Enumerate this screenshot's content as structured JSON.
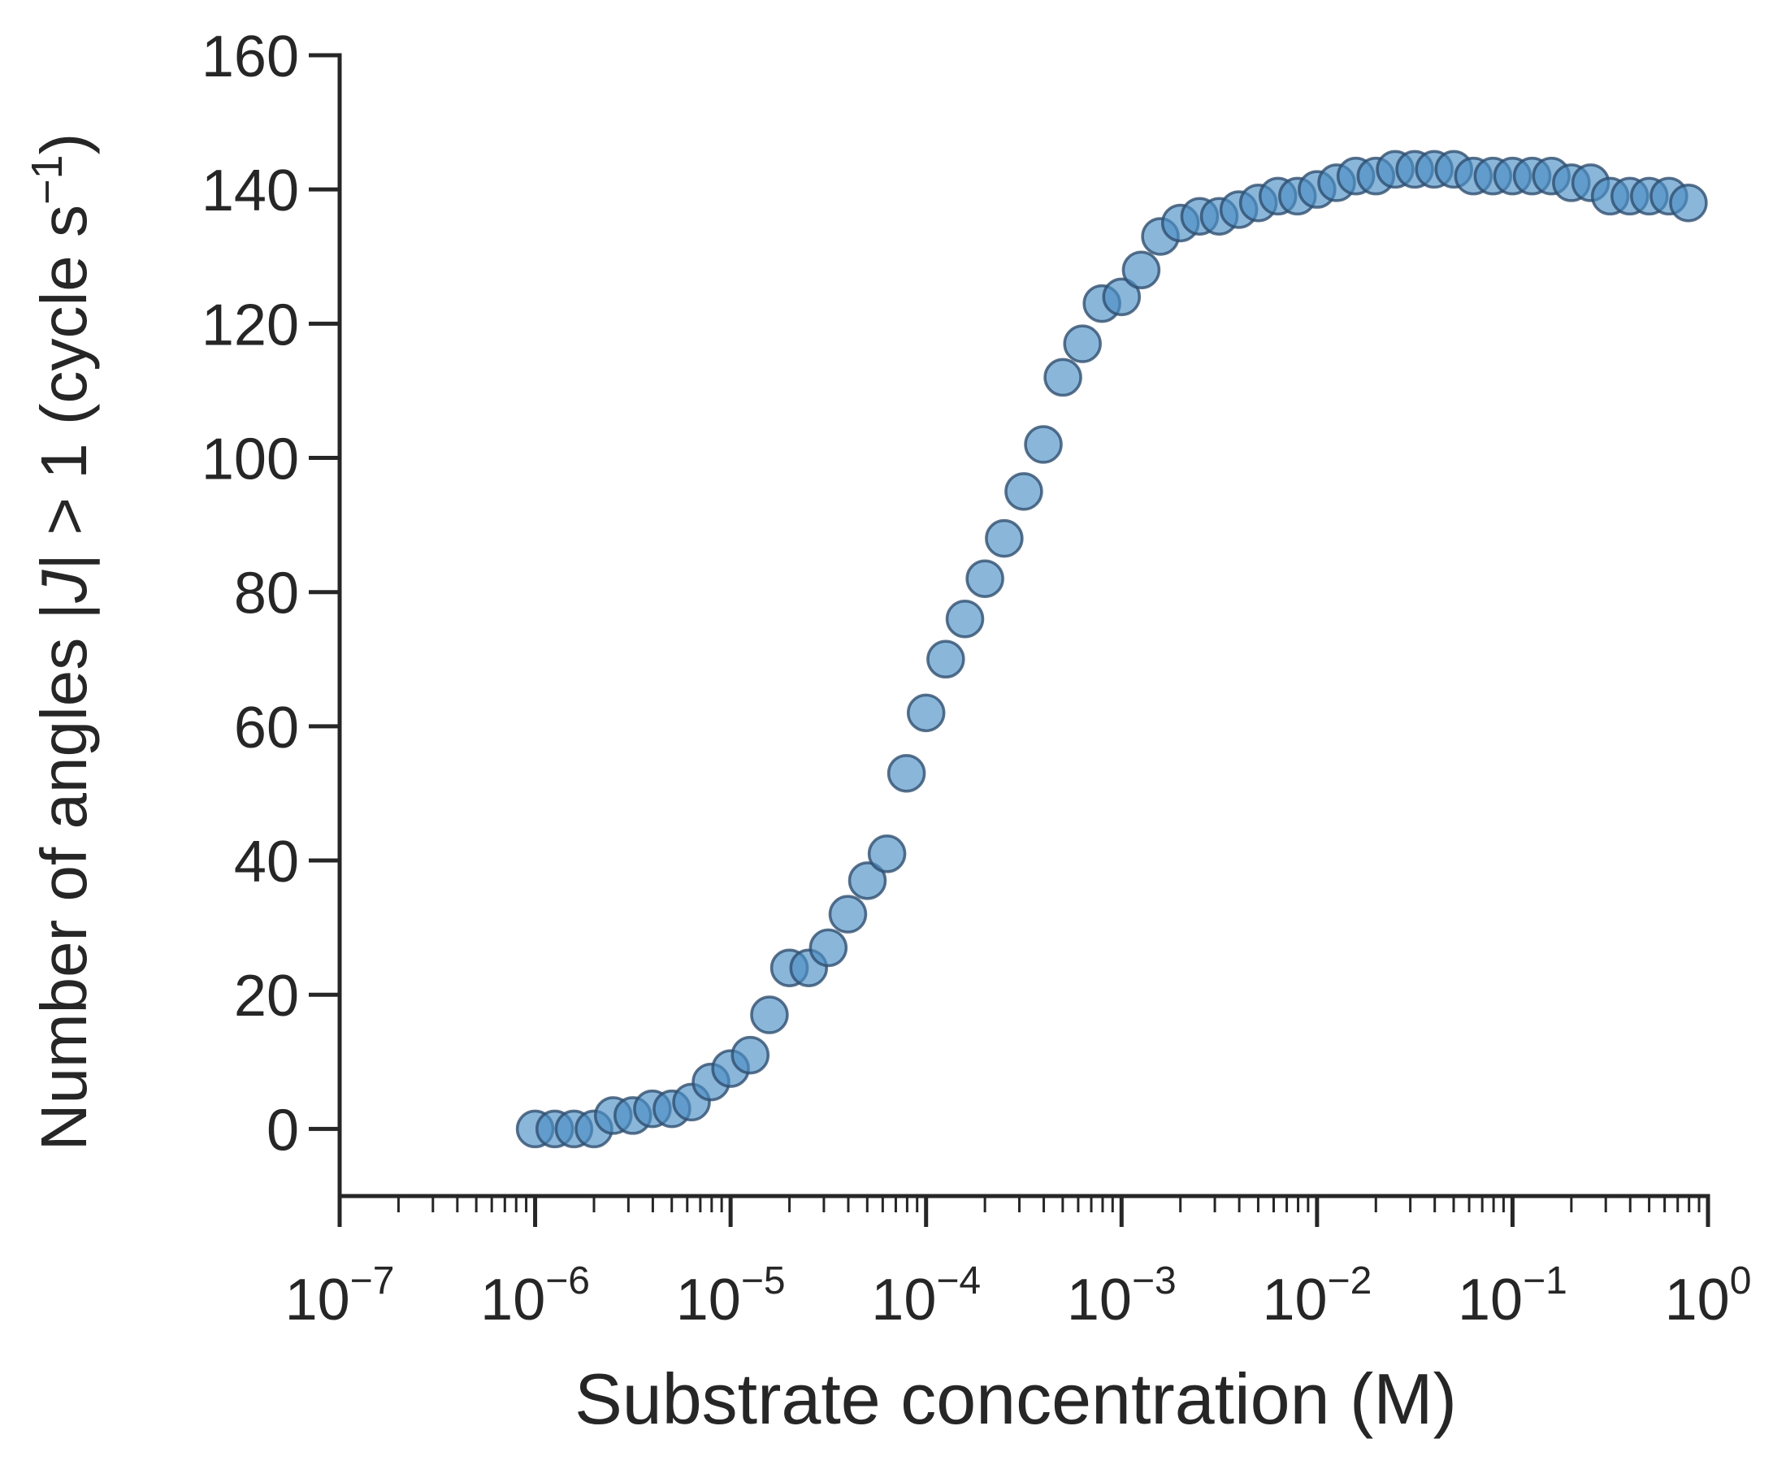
{
  "chart_data": {
    "type": "scatter",
    "xlabel": "Substrate concentration (M)",
    "ylabel": "Number of angles |J| > 1 (cycle s⁻¹)",
    "ylabel_parts": {
      "prefix": "Number of angles |",
      "italic": "J",
      "middle": "| > 1 (cycle s",
      "superscript": "−1",
      "suffix": ")"
    },
    "x_scale": "log",
    "xlim": [
      1e-07,
      1
    ],
    "ylim": [
      -10,
      160
    ],
    "x_ticks": [
      {
        "value": 1e-07,
        "base": "10",
        "exp": "−7"
      },
      {
        "value": 1e-06,
        "base": "10",
        "exp": "−6"
      },
      {
        "value": 1e-05,
        "base": "10",
        "exp": "−5"
      },
      {
        "value": 0.0001,
        "base": "10",
        "exp": "−4"
      },
      {
        "value": 0.001,
        "base": "10",
        "exp": "−3"
      },
      {
        "value": 0.01,
        "base": "10",
        "exp": "−2"
      },
      {
        "value": 0.1,
        "base": "10",
        "exp": "−1"
      },
      {
        "value": 1,
        "base": "10",
        "exp": "0"
      }
    ],
    "y_ticks": [
      0,
      20,
      40,
      60,
      80,
      100,
      120,
      140,
      160
    ],
    "y_tick_labels": [
      "0",
      "20",
      "40",
      "60",
      "80",
      "100",
      "120",
      "140",
      "160"
    ],
    "grid": false,
    "marker_color": "#4c8fc4",
    "marker_edge_color": "#2f4f6f",
    "axis_color": "#262626",
    "points": [
      {
        "x": 1e-06,
        "y": 0
      },
      {
        "x": 1.26e-06,
        "y": 0
      },
      {
        "x": 1.58e-06,
        "y": 0
      },
      {
        "x": 2e-06,
        "y": 0
      },
      {
        "x": 2.51e-06,
        "y": 2
      },
      {
        "x": 3.16e-06,
        "y": 2
      },
      {
        "x": 3.98e-06,
        "y": 3
      },
      {
        "x": 5.01e-06,
        "y": 3
      },
      {
        "x": 6.31e-06,
        "y": 4
      },
      {
        "x": 7.94e-06,
        "y": 7
      },
      {
        "x": 1e-05,
        "y": 9
      },
      {
        "x": 1.26e-05,
        "y": 11
      },
      {
        "x": 1.58e-05,
        "y": 17
      },
      {
        "x": 2e-05,
        "y": 24
      },
      {
        "x": 2.51e-05,
        "y": 24
      },
      {
        "x": 3.16e-05,
        "y": 27
      },
      {
        "x": 3.98e-05,
        "y": 32
      },
      {
        "x": 5.01e-05,
        "y": 37
      },
      {
        "x": 6.31e-05,
        "y": 41
      },
      {
        "x": 7.94e-05,
        "y": 53
      },
      {
        "x": 0.0001,
        "y": 62
      },
      {
        "x": 0.000126,
        "y": 70
      },
      {
        "x": 0.000158,
        "y": 76
      },
      {
        "x": 0.0002,
        "y": 82
      },
      {
        "x": 0.000251,
        "y": 88
      },
      {
        "x": 0.000316,
        "y": 95
      },
      {
        "x": 0.000398,
        "y": 102
      },
      {
        "x": 0.000501,
        "y": 112
      },
      {
        "x": 0.000631,
        "y": 117
      },
      {
        "x": 0.000794,
        "y": 123
      },
      {
        "x": 0.001,
        "y": 124
      },
      {
        "x": 0.00126,
        "y": 128
      },
      {
        "x": 0.00158,
        "y": 133
      },
      {
        "x": 0.002,
        "y": 135
      },
      {
        "x": 0.00251,
        "y": 136
      },
      {
        "x": 0.00316,
        "y": 136
      },
      {
        "x": 0.00398,
        "y": 137
      },
      {
        "x": 0.00501,
        "y": 138
      },
      {
        "x": 0.00631,
        "y": 139
      },
      {
        "x": 0.00794,
        "y": 139
      },
      {
        "x": 0.01,
        "y": 140
      },
      {
        "x": 0.0126,
        "y": 141
      },
      {
        "x": 0.0158,
        "y": 142
      },
      {
        "x": 0.02,
        "y": 142
      },
      {
        "x": 0.0251,
        "y": 143
      },
      {
        "x": 0.0316,
        "y": 143
      },
      {
        "x": 0.0398,
        "y": 143
      },
      {
        "x": 0.0501,
        "y": 143
      },
      {
        "x": 0.0631,
        "y": 142
      },
      {
        "x": 0.0794,
        "y": 142
      },
      {
        "x": 0.1,
        "y": 142
      },
      {
        "x": 0.126,
        "y": 142
      },
      {
        "x": 0.158,
        "y": 142
      },
      {
        "x": 0.2,
        "y": 141
      },
      {
        "x": 0.251,
        "y": 141
      },
      {
        "x": 0.316,
        "y": 139
      },
      {
        "x": 0.398,
        "y": 139
      },
      {
        "x": 0.501,
        "y": 139
      },
      {
        "x": 0.631,
        "y": 139
      },
      {
        "x": 0.794,
        "y": 138
      }
    ]
  }
}
